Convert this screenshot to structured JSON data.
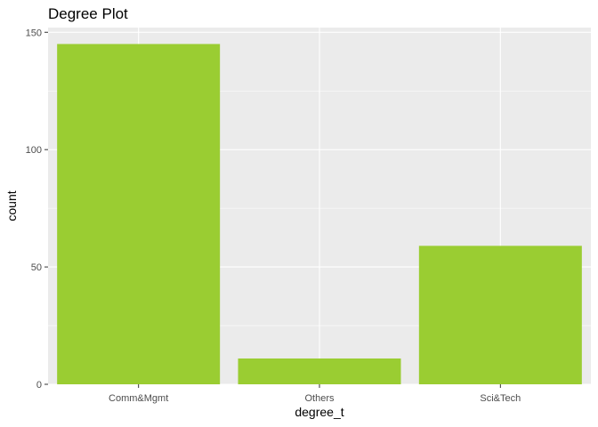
{
  "chart_data": {
    "type": "bar",
    "title": "Degree Plot",
    "xlabel": "degree_t",
    "ylabel": "count",
    "categories": [
      "Comm&Mgmt",
      "Others",
      "Sci&Tech"
    ],
    "values": [
      145,
      11,
      59
    ],
    "ylim": [
      0,
      152
    ],
    "yticks": [
      0,
      50,
      100,
      150
    ],
    "ytick_labels": [
      "0",
      "50",
      "100",
      "150"
    ],
    "grid": true,
    "legend": "none",
    "colors": {
      "bar": "#9ACD32",
      "panel": "#EBEBEB",
      "grid_major": "#FFFFFF",
      "axis_text": "#4D4D4D",
      "tick": "#333333"
    }
  }
}
